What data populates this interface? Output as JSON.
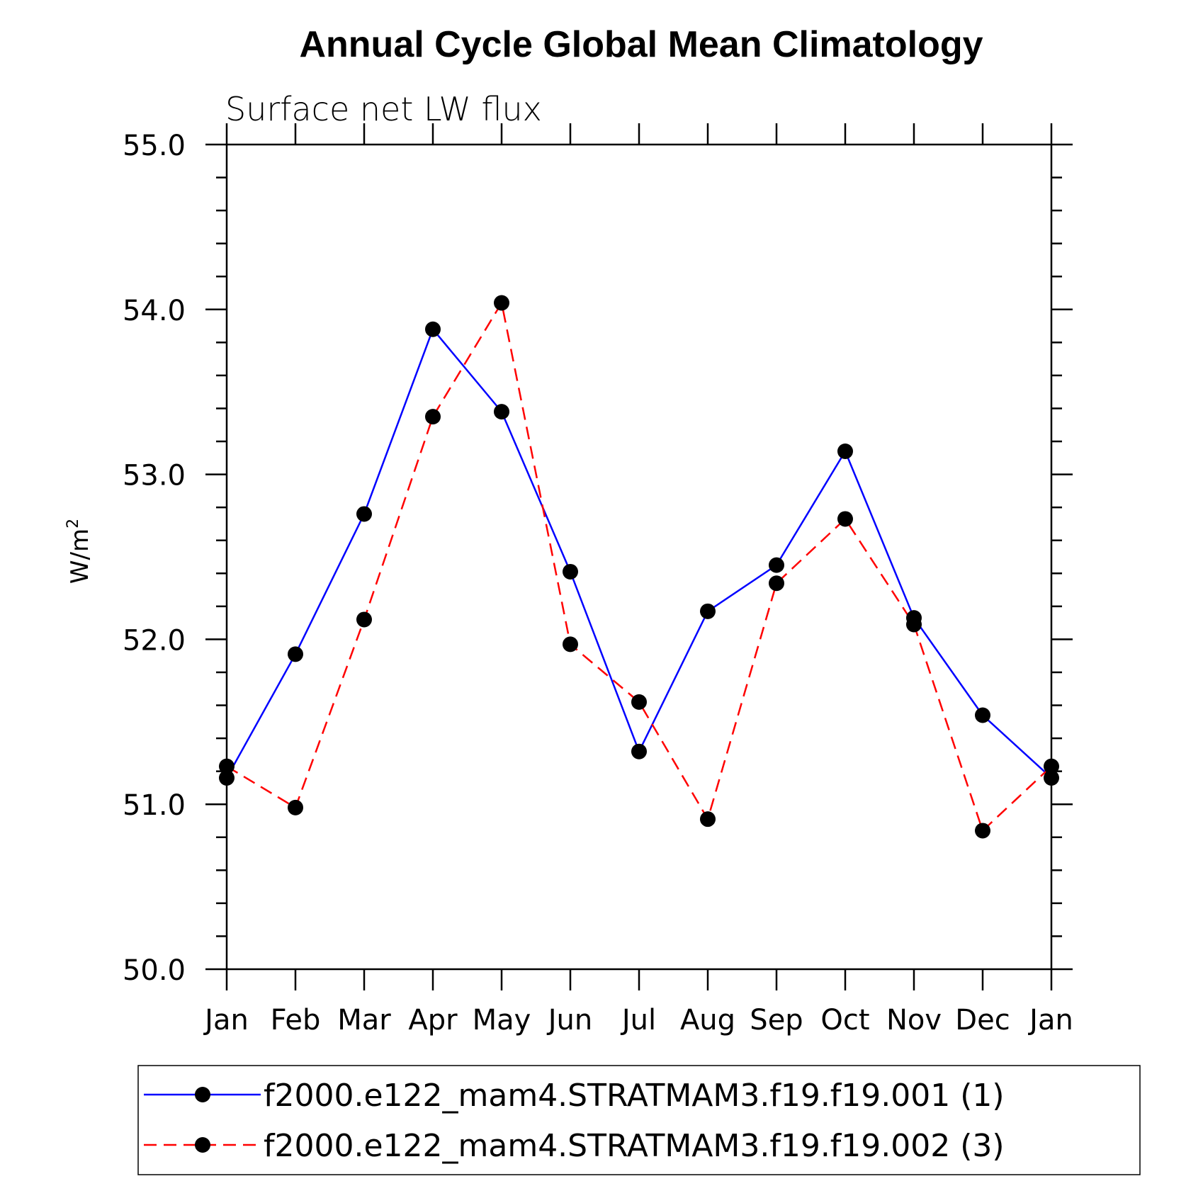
{
  "chart_data": {
    "type": "line",
    "title": "Annual Cycle Global Mean Climatology",
    "subtitle": "Surface net LW flux",
    "ylabel": "W/m",
    "ylabel_superscript": "2",
    "xlabel": "",
    "ylim": [
      50.0,
      55.0
    ],
    "yticks": [
      "50.0",
      "51.0",
      "52.0",
      "53.0",
      "54.0",
      "55.0"
    ],
    "categories": [
      "Jan",
      "Feb",
      "Mar",
      "Apr",
      "May",
      "Jun",
      "Jul",
      "Aug",
      "Sep",
      "Oct",
      "Nov",
      "Dec",
      "Jan"
    ],
    "series": [
      {
        "name": "f2000.e122_mam4.STRATMAM3.f19.f19.001 (1)",
        "color": "#0000ff",
        "dash": "solid",
        "values": [
          51.16,
          51.91,
          52.76,
          53.88,
          53.38,
          52.41,
          51.32,
          52.17,
          52.45,
          53.14,
          52.13,
          51.54,
          51.16
        ]
      },
      {
        "name": "f2000.e122_mam4.STRATMAM3.f19.f19.002 (3)",
        "color": "#ff0000",
        "dash": "dashed",
        "values": [
          51.23,
          50.98,
          52.12,
          53.35,
          54.04,
          51.97,
          51.62,
          50.91,
          52.34,
          52.73,
          52.09,
          50.84,
          51.23
        ]
      }
    ],
    "grid": false,
    "legend_position": "bottom"
  }
}
